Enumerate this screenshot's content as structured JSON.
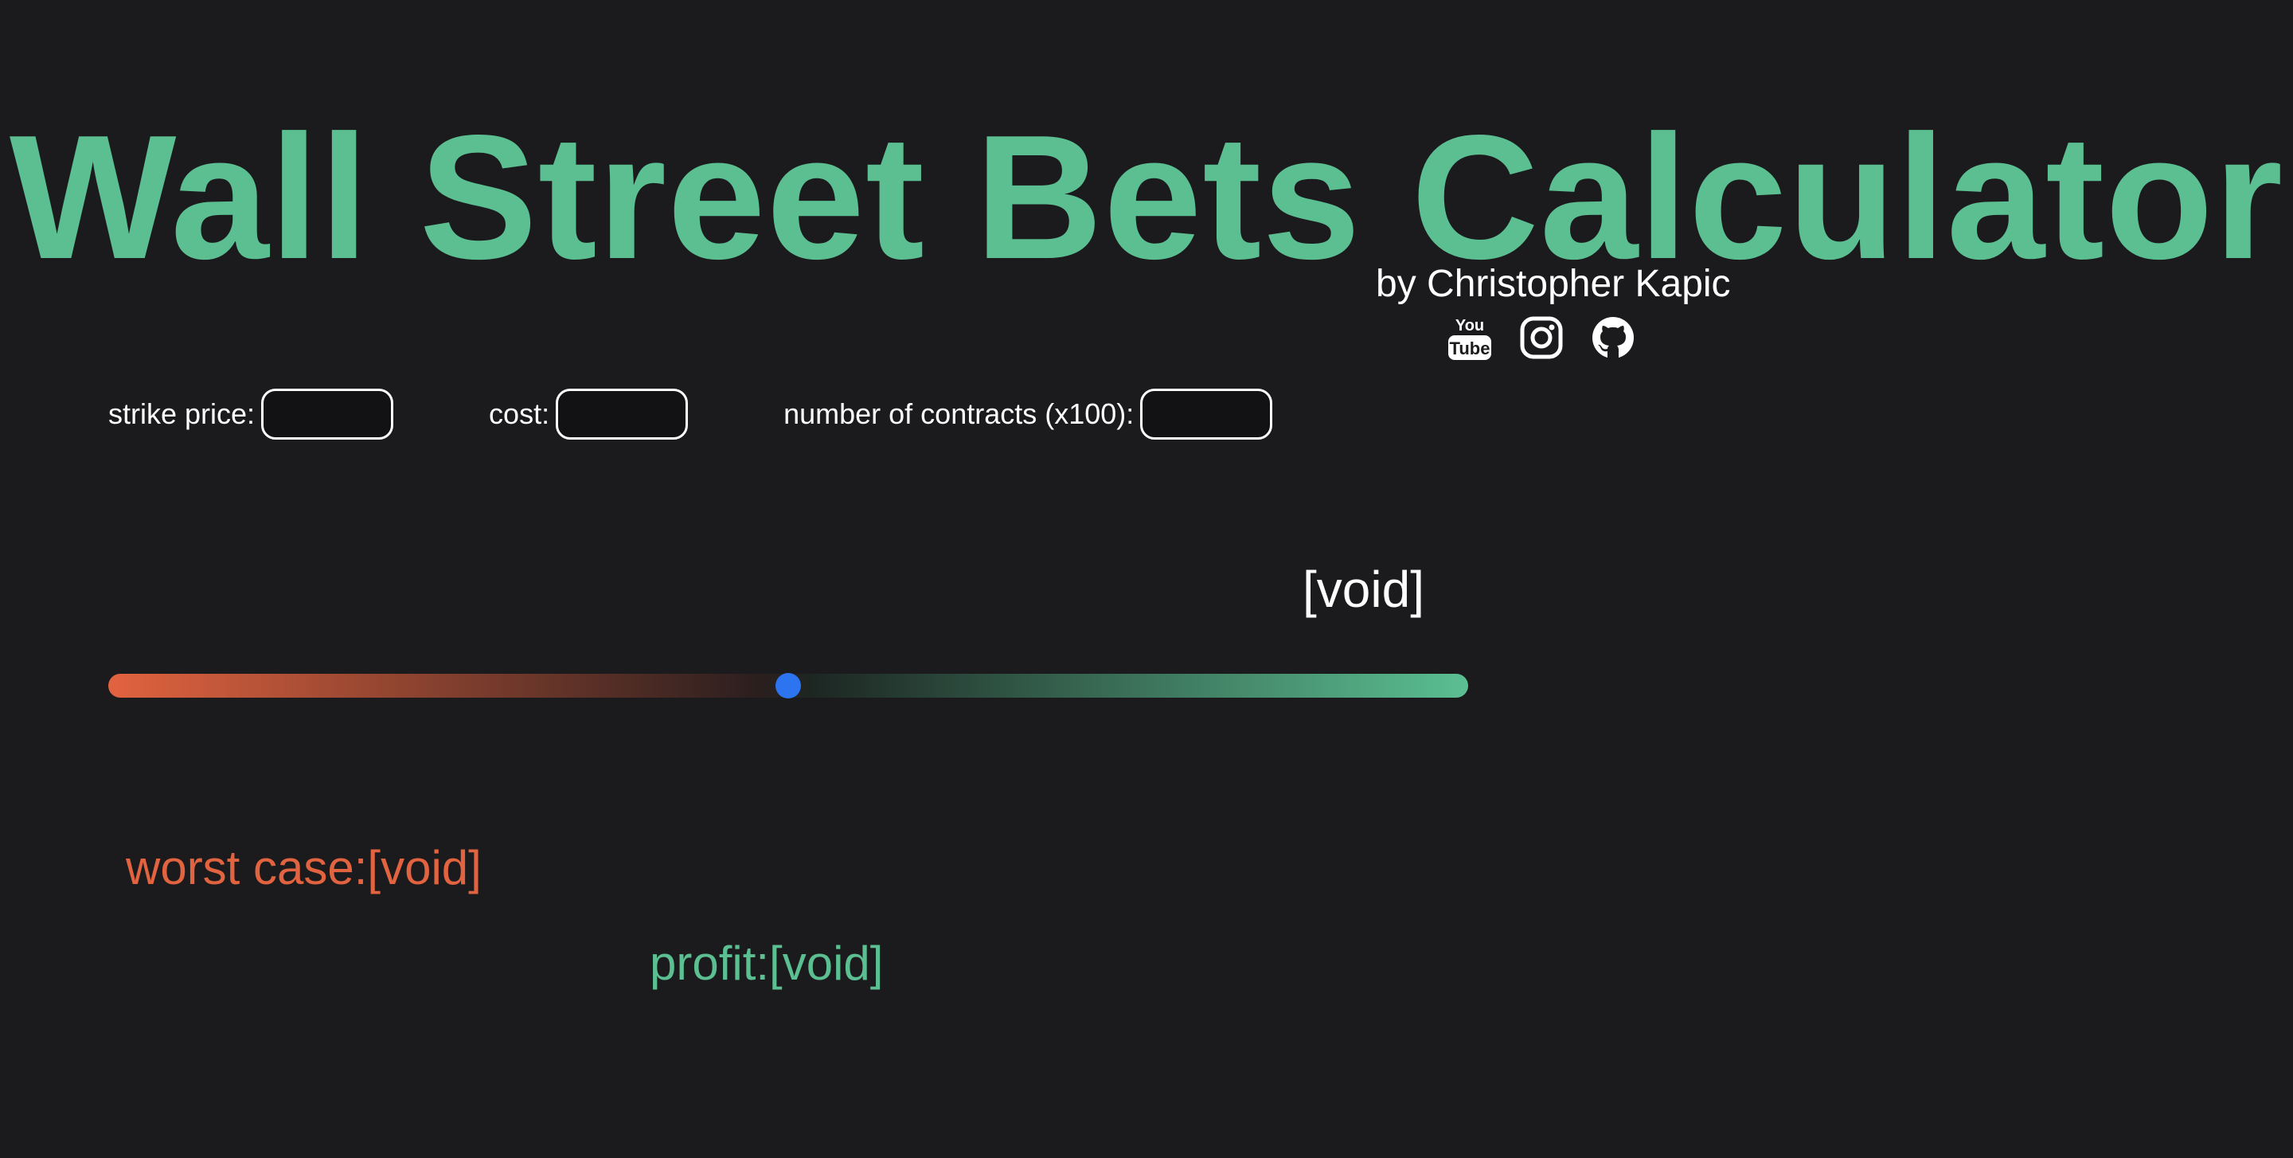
{
  "header": {
    "title": "Wall Street Bets Calculator",
    "byline": "by Christopher Kapic"
  },
  "socials": [
    {
      "name": "youtube",
      "icon": "youtube-icon"
    },
    {
      "name": "instagram",
      "icon": "instagram-icon"
    },
    {
      "name": "github",
      "icon": "github-icon"
    }
  ],
  "inputs": {
    "strike_price": {
      "label": "strike price:",
      "value": ""
    },
    "cost": {
      "label": "cost:",
      "value": ""
    },
    "contracts": {
      "label": "number of contracts (x100):",
      "value": ""
    }
  },
  "slider": {
    "value_label": "[void]",
    "position_fraction": 0.5
  },
  "results": {
    "worst_case": "worst case:[void]",
    "profit": "profit:[void]"
  },
  "colors": {
    "background": "#1b1b1d",
    "accent": "#5bbf92",
    "danger": "#e2633f",
    "thumb": "#2d74f0",
    "text": "#ffffff"
  }
}
